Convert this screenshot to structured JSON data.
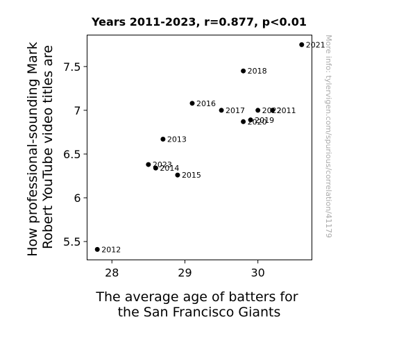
{
  "chart_data": {
    "type": "scatter",
    "title": "Years 2011-2023, r=0.877, p<0.01",
    "xlabel_lines": [
      "The average age of batters for",
      "the San Francisco Giants"
    ],
    "ylabel_lines": [
      "How professional-sounding Mark",
      "Robert YouTube video titles are"
    ],
    "xlim": [
      27.66,
      30.74
    ],
    "ylim": [
      5.29,
      7.86
    ],
    "xticks": [
      {
        "value": 28,
        "label": "28"
      },
      {
        "value": 29,
        "label": "29"
      },
      {
        "value": 30,
        "label": "30"
      }
    ],
    "yticks": [
      {
        "value": 5.5,
        "label": "5.5"
      },
      {
        "value": 6,
        "label": "6"
      },
      {
        "value": 6.5,
        "label": "6.5"
      },
      {
        "value": 7,
        "label": "7"
      },
      {
        "value": 7.5,
        "label": "7.5"
      }
    ],
    "grid": false,
    "legend": "none",
    "point_color": "#000000",
    "points": [
      {
        "label": "2011",
        "x": 30.2,
        "y": 7.0
      },
      {
        "label": "2012",
        "x": 27.8,
        "y": 5.41
      },
      {
        "label": "2013",
        "x": 28.7,
        "y": 6.67
      },
      {
        "label": "2014",
        "x": 28.6,
        "y": 6.34
      },
      {
        "label": "2015",
        "x": 28.9,
        "y": 6.26
      },
      {
        "label": "2016",
        "x": 29.1,
        "y": 7.08
      },
      {
        "label": "2017",
        "x": 29.5,
        "y": 7.0
      },
      {
        "label": "2018",
        "x": 29.8,
        "y": 7.45
      },
      {
        "label": "2019",
        "x": 29.9,
        "y": 6.89
      },
      {
        "label": "2020",
        "x": 29.8,
        "y": 6.87
      },
      {
        "label": "2021",
        "x": 30.6,
        "y": 7.75
      },
      {
        "label": "2022",
        "x": 30.0,
        "y": 7.0
      },
      {
        "label": "2023",
        "x": 28.5,
        "y": 6.38
      }
    ]
  },
  "watermark": "More info: tylervigen.com/spurious/correlation/41179"
}
